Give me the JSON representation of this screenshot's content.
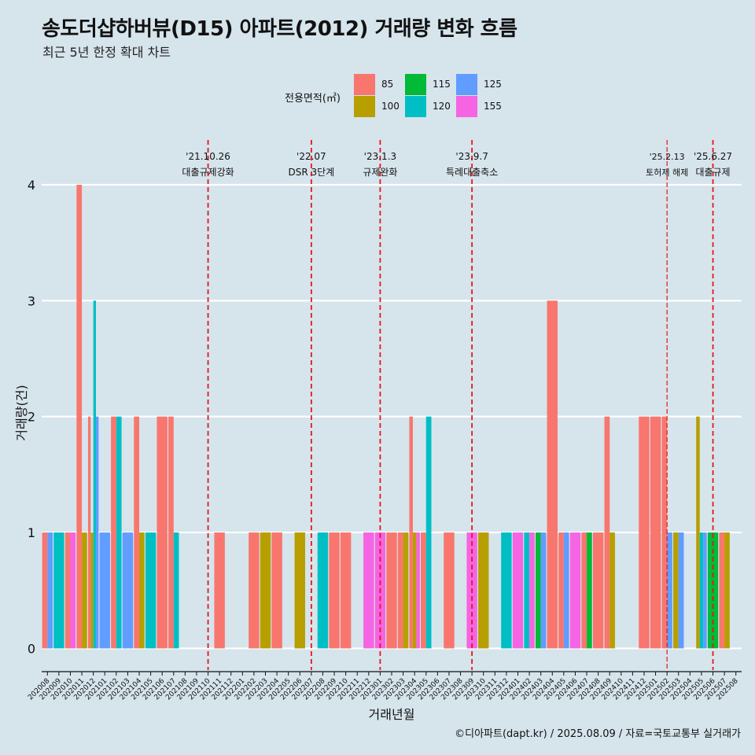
{
  "title": "송도더샵하버뷰(D15) 아파트(2012) 거래량 변화 흐름",
  "subtitle": "최근 5년 한정 확대 차트",
  "caption": "©디아파트(dapt.kr) / 2025.08.09 / 자료=국토교통부 실거래가",
  "legend": {
    "title": "전용면적(㎡)",
    "items": [
      {
        "label": "85",
        "color": "#f8766d"
      },
      {
        "label": "100",
        "color": "#b79f00"
      },
      {
        "label": "115",
        "color": "#00ba38"
      },
      {
        "label": "120",
        "color": "#00bfc4"
      },
      {
        "label": "125",
        "color": "#619cff"
      },
      {
        "label": "155",
        "color": "#f564e3"
      }
    ]
  },
  "chart_data": {
    "type": "bar",
    "xlabel": "거래년월",
    "ylabel": "거래량(건)",
    "ylim": [
      0,
      4
    ],
    "yticks": [
      0,
      1,
      2,
      3,
      4
    ],
    "grid": true,
    "legend_position": "top",
    "categories": [
      "202008",
      "202009",
      "202010",
      "202011",
      "202012",
      "202101",
      "202102",
      "202103",
      "202104",
      "202105",
      "202106",
      "202107",
      "202108",
      "202109",
      "202110",
      "202111",
      "202112",
      "202201",
      "202202",
      "202203",
      "202204",
      "202205",
      "202206",
      "202207",
      "202208",
      "202209",
      "202210",
      "202211",
      "202212",
      "202301",
      "202302",
      "202303",
      "202304",
      "202305",
      "202306",
      "202307",
      "202308",
      "202309",
      "202310",
      "202311",
      "202312",
      "202401",
      "202402",
      "202403",
      "202404",
      "202405",
      "202406",
      "202407",
      "202408",
      "202409",
      "202410",
      "202411",
      "202412",
      "202501",
      "202502",
      "202503",
      "202504",
      "202505",
      "202506",
      "202507",
      "202508"
    ],
    "series": [
      {
        "name": "85",
        "values": [
          1,
          0,
          1,
          4,
          2,
          0,
          2,
          0,
          2,
          0,
          2,
          2,
          0,
          0,
          0,
          1,
          0,
          0,
          1,
          0,
          1,
          0,
          0,
          0,
          0,
          1,
          1,
          0,
          0,
          0,
          1,
          1,
          2,
          1,
          0,
          1,
          0,
          0,
          0,
          0,
          0,
          0,
          0,
          0,
          3,
          1,
          0,
          1,
          1,
          2,
          0,
          0,
          2,
          2,
          2,
          0,
          0,
          0,
          0,
          1,
          0
        ]
      },
      {
        "name": "100",
        "values": [
          0,
          0,
          0,
          1,
          1,
          0,
          0,
          0,
          1,
          0,
          0,
          0,
          0,
          0,
          0,
          0,
          0,
          0,
          0,
          1,
          0,
          0,
          1,
          0,
          0,
          0,
          0,
          0,
          0,
          0,
          0,
          1,
          1,
          0,
          0,
          0,
          0,
          0,
          1,
          0,
          0,
          0,
          0,
          0,
          0,
          0,
          0,
          0,
          0,
          1,
          0,
          0,
          0,
          0,
          0,
          1,
          0,
          2,
          0,
          1,
          0
        ]
      },
      {
        "name": "115",
        "values": [
          0,
          0,
          0,
          0,
          0,
          0,
          0,
          0,
          0,
          0,
          0,
          0,
          0,
          0,
          0,
          0,
          0,
          0,
          0,
          0,
          0,
          0,
          0,
          0,
          0,
          0,
          0,
          0,
          0,
          0,
          0,
          0,
          0,
          0,
          0,
          0,
          0,
          0,
          0,
          0,
          0,
          0,
          0,
          1,
          0,
          0,
          0,
          1,
          0,
          0,
          0,
          0,
          0,
          0,
          0,
          0,
          0,
          0,
          1,
          0,
          0
        ]
      },
      {
        "name": "120",
        "values": [
          0,
          1,
          0,
          0,
          3,
          0,
          2,
          0,
          0,
          1,
          0,
          1,
          0,
          0,
          0,
          0,
          0,
          0,
          0,
          0,
          0,
          0,
          0,
          0,
          1,
          0,
          0,
          0,
          0,
          0,
          0,
          0,
          0,
          2,
          0,
          0,
          0,
          0,
          0,
          0,
          1,
          0,
          1,
          0,
          0,
          0,
          0,
          0,
          0,
          0,
          0,
          0,
          0,
          0,
          0,
          0,
          0,
          1,
          0,
          0,
          0
        ]
      },
      {
        "name": "125",
        "values": [
          1,
          0,
          0,
          0,
          2,
          1,
          0,
          1,
          0,
          0,
          0,
          0,
          0,
          0,
          0,
          0,
          0,
          0,
          0,
          0,
          0,
          0,
          0,
          0,
          0,
          0,
          0,
          0,
          0,
          0,
          0,
          0,
          0,
          0,
          0,
          0,
          0,
          0,
          0,
          0,
          0,
          0,
          0,
          1,
          0,
          1,
          0,
          0,
          0,
          0,
          0,
          0,
          0,
          0,
          1,
          1,
          0,
          1,
          0,
          0,
          0
        ]
      },
      {
        "name": "155",
        "values": [
          0,
          0,
          1,
          0,
          0,
          0,
          0,
          0,
          0,
          0,
          0,
          0,
          0,
          0,
          0,
          0,
          0,
          0,
          0,
          0,
          0,
          0,
          0,
          0,
          0,
          0,
          0,
          0,
          1,
          1,
          0,
          0,
          1,
          0,
          0,
          0,
          0,
          1,
          0,
          0,
          0,
          1,
          1,
          0,
          0,
          0,
          1,
          0,
          0,
          0,
          0,
          0,
          0,
          0,
          0,
          0,
          0,
          0,
          0,
          0,
          0
        ]
      }
    ],
    "events": [
      {
        "date_label": "'21.10.26",
        "label": "대출규제강화",
        "x": "202110",
        "style": "major"
      },
      {
        "date_label": "'22.07",
        "label": "DSR 3단계",
        "x": "202207",
        "style": "major"
      },
      {
        "date_label": "'23.1.3",
        "label": "규제완화",
        "x": "202301",
        "style": "major"
      },
      {
        "date_label": "'23.9.7",
        "label": "특례대출축소",
        "x": "202309",
        "style": "major"
      },
      {
        "date_label": "'25.2.13",
        "label": "토허제 해제",
        "x": "202502",
        "style": "minor"
      },
      {
        "date_label": "'25.6.27",
        "label": "대출규제",
        "x": "202506",
        "style": "major"
      }
    ]
  }
}
